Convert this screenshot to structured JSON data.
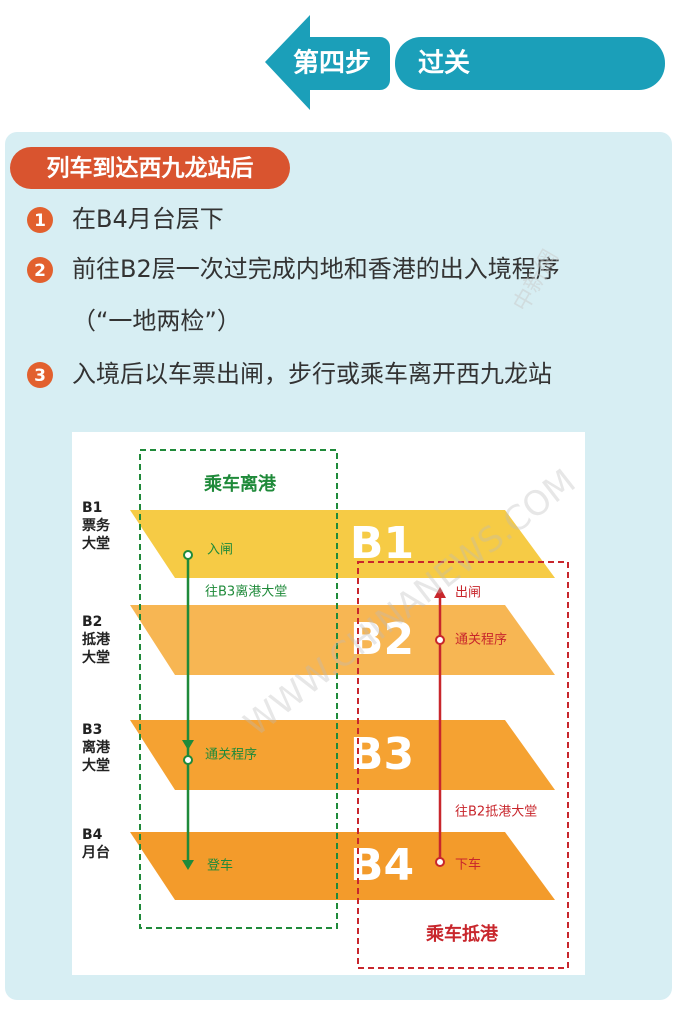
{
  "header": {
    "step": "第四步",
    "title": "过关"
  },
  "section": {
    "tag": "列车到达西九龙站后",
    "steps": [
      {
        "number": "1",
        "lines": [
          "在B4月台层下"
        ]
      },
      {
        "number": "2",
        "lines": [
          "前往B2层一次过完成内地和香港的出入境程序",
          "（“一地两检”）"
        ]
      },
      {
        "number": "3",
        "lines": [
          "入境后以车票出闸，步行或乘车离开西九龙站"
        ]
      }
    ]
  },
  "diagram": {
    "levels": [
      {
        "code": "B1",
        "name": [
          "票务",
          "大堂"
        ]
      },
      {
        "code": "B2",
        "name": [
          "抵港",
          "大堂"
        ]
      },
      {
        "code": "B3",
        "name": [
          "离港",
          "大堂"
        ]
      },
      {
        "code": "B4",
        "name": [
          "月台"
        ]
      }
    ],
    "departure": {
      "title": "乘车离港",
      "labels": [
        "入闸",
        "往B3离港大堂",
        "通关程序",
        "登车"
      ]
    },
    "arrival": {
      "title": "乘车抵港",
      "labels": [
        "出闸",
        "通关程序",
        "往B2抵港大堂",
        "下车"
      ]
    }
  },
  "watermark": [
    "中新網",
    "WWW.CHINANEWS.COM"
  ]
}
